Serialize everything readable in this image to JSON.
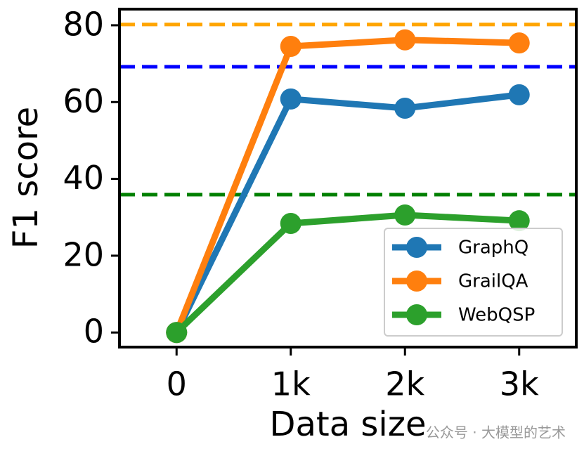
{
  "chart_data": {
    "type": "line",
    "x_label": "Data size",
    "y_label": "F1 score",
    "x": [
      0,
      1000,
      2000,
      3000
    ],
    "series": [
      {
        "name": "GraphQ",
        "color": "#1f77b4",
        "values": [
          0,
          60.8,
          58.4,
          61.9
        ]
      },
      {
        "name": "GrailQA",
        "color": "#ff7f0e",
        "values": [
          0,
          74.5,
          76.2,
          75.4
        ]
      },
      {
        "name": "WebQSP",
        "color": "#2ca02c",
        "values": [
          0,
          28.4,
          30.6,
          29.1
        ]
      }
    ],
    "reference_lines": [
      {
        "value": 80.2,
        "color": "#ffa500"
      },
      {
        "value": 69.2,
        "color": "#0000ff"
      },
      {
        "value": 35.9,
        "color": "#008000"
      }
    ],
    "xlim": [
      -500,
      3500
    ],
    "xticks": [
      0,
      {
        "value": 1000,
        "label": "1k"
      },
      {
        "value": 2000,
        "label": "2k"
      },
      {
        "value": 3000,
        "label": "3k"
      }
    ],
    "ylim": [
      -3.8,
      84.2
    ],
    "yticks": [
      0,
      20,
      40,
      60,
      80
    ],
    "legend": "lower right",
    "watermark": "公众号 · 大模型的艺术"
  }
}
